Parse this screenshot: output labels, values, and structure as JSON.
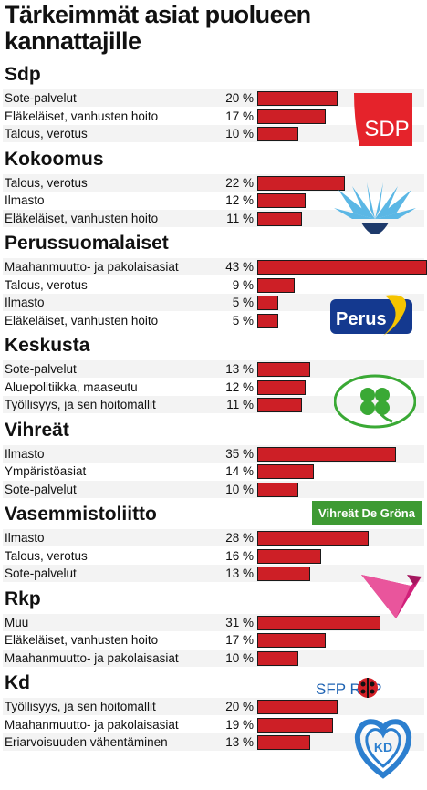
{
  "title": "Tärkeimmät asiat puolueen kannattajille",
  "colors": {
    "bar": "#cd1f26",
    "bar_border": "#1a1a1a",
    "row_shade": "#f3f3f3"
  },
  "chart_data": {
    "type": "bar",
    "orientation": "horizontal",
    "title": "Tärkeimmät asiat puolueen kannattajille",
    "unit": "%",
    "xlim": [
      0,
      43
    ],
    "groups": [
      {
        "party": "Sdp",
        "logo_text": "SDP",
        "logo_icon": "sdp-rose-logo",
        "items": [
          {
            "label": "Sote-palvelut",
            "value": 20
          },
          {
            "label": "Eläkeläiset, vanhusten hoito",
            "value": 17
          },
          {
            "label": "Talous, verotus",
            "value": 10
          }
        ]
      },
      {
        "party": "Kokoomus",
        "logo_text": "",
        "logo_icon": "kokoomus-cornflower-logo",
        "items": [
          {
            "label": "Talous, verotus",
            "value": 22
          },
          {
            "label": "Ilmasto",
            "value": 12
          },
          {
            "label": "Eläkeläiset, vanhusten hoito",
            "value": 11
          }
        ]
      },
      {
        "party": "Perussuomalaiset",
        "logo_text": "Perus",
        "logo_icon": "perussuomalaiset-logo",
        "items": [
          {
            "label": "Maahanmuutto- ja pakolaisasiat",
            "value": 43
          },
          {
            "label": "Talous, verotus",
            "value": 9
          },
          {
            "label": "Ilmasto",
            "value": 5
          },
          {
            "label": "Eläkeläiset, vanhusten hoito",
            "value": 5
          }
        ]
      },
      {
        "party": "Keskusta",
        "logo_text": "",
        "logo_icon": "keskusta-clover-logo",
        "items": [
          {
            "label": "Sote-palvelut",
            "value": 13
          },
          {
            "label": "Aluepolitiikka, maaseutu",
            "value": 12
          },
          {
            "label": "Työllisyys, ja sen hoitomallit",
            "value": 11
          }
        ]
      },
      {
        "party": "Vihreät",
        "logo_text": "Vihreät De Gröna",
        "logo_icon": "vihreat-logo",
        "items": [
          {
            "label": "Ilmasto",
            "value": 35
          },
          {
            "label": "Ympäristöasiat",
            "value": 14
          },
          {
            "label": "Sote-palvelut",
            "value": 10
          }
        ]
      },
      {
        "party": "Vasemmistoliitto",
        "logo_text": "",
        "logo_icon": "vasemmistoliitto-v-logo",
        "items": [
          {
            "label": "Ilmasto",
            "value": 28
          },
          {
            "label": "Talous, verotus",
            "value": 16
          },
          {
            "label": "Sote-palvelut",
            "value": 13
          }
        ]
      },
      {
        "party": "Rkp",
        "logo_text": "SFP RKP",
        "logo_icon": "rkp-ladybug-logo",
        "items": [
          {
            "label": "Muu",
            "value": 31
          },
          {
            "label": "Eläkeläiset, vanhusten hoito",
            "value": 17
          },
          {
            "label": "Maahanmuutto- ja pakolaisasiat",
            "value": 10
          }
        ]
      },
      {
        "party": "Kd",
        "logo_text": "KD",
        "logo_icon": "kd-heart-logo",
        "items": [
          {
            "label": "Työllisyys, ja sen hoitomallit",
            "value": 20
          },
          {
            "label": "Maahanmuutto- ja pakolaisasiat",
            "value": 19
          },
          {
            "label": "Eriarvoisuuden vähentäminen",
            "value": 13
          }
        ]
      }
    ]
  }
}
